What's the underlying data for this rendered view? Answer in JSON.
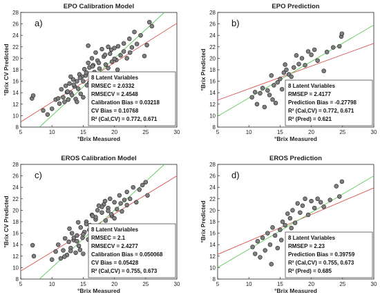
{
  "colors": {
    "point_fill": "#808080",
    "point_stroke": "#2b2b2b",
    "fit_line": "#d9534f",
    "ideal_line": "#5cc85c",
    "axis": "#222222",
    "background": "#ffffff"
  },
  "chart_data": [
    {
      "type": "scatter",
      "panel_letter": "a)",
      "title": "EPO Calibration Model",
      "xlabel": "°Brix Measured",
      "ylabel": "°Brix CV Predicted",
      "xlim": [
        5,
        30
      ],
      "ylim": [
        8,
        28
      ],
      "xticks": [
        "5",
        "10",
        "15",
        "20",
        "25",
        "30"
      ],
      "yticks": [
        "8",
        "10",
        "12",
        "14",
        "16",
        "18",
        "20",
        "22",
        "24",
        "26",
        "28"
      ],
      "grid": false,
      "lines": [
        {
          "kind": "fit",
          "color": "red",
          "points": [
            [
              5,
              8.9
            ],
            [
              30,
              26.1
            ]
          ]
        },
        {
          "kind": "ideal",
          "color": "green",
          "points": [
            [
              8,
              8
            ],
            [
              28,
              28
            ]
          ]
        }
      ],
      "stats": [
        "8 Latent Variables",
        "RMSEC = 2.0332",
        "RMSECV = 2.4548",
        "Calibration Bias = 0.03218",
        "CV Bias = 0.10768",
        "R² (Cal,CV) = 0.772, 0.671"
      ],
      "x": [
        6.8,
        7.0,
        8.6,
        9.3,
        10.0,
        10.6,
        11.0,
        11.2,
        11.5,
        11.8,
        12.0,
        12.2,
        12.4,
        12.6,
        12.8,
        13.0,
        13.2,
        13.4,
        13.6,
        13.8,
        14.0,
        14.2,
        14.4,
        14.6,
        14.8,
        15.0,
        15.2,
        15.4,
        15.6,
        15.8,
        16.0,
        16.2,
        16.4,
        16.6,
        16.8,
        17.0,
        17.3,
        17.6,
        18.0,
        18.3,
        18.6,
        19.0,
        19.3,
        19.6,
        20.0,
        20.3,
        20.6,
        21.0,
        21.5,
        22.0,
        22.4,
        22.8,
        23.2,
        23.6,
        24.2,
        24.8,
        25.2,
        25.6,
        26.0,
        12.5,
        13.5,
        14.5,
        15.5,
        16.5,
        17.5,
        18.5,
        19.5,
        20.5,
        21.5,
        22.5,
        14.0,
        15.0,
        16.0,
        17.0,
        18.0,
        19.0,
        20.0,
        13.0,
        15.8,
        18.2
      ],
      "y": [
        13.0,
        13.5,
        10.9,
        10.2,
        11.2,
        12.8,
        13.0,
        12.1,
        14.6,
        13.2,
        12.4,
        15.2,
        14.1,
        12.8,
        15.6,
        14.0,
        13.6,
        16.3,
        15.1,
        12.9,
        16.0,
        14.7,
        17.2,
        13.8,
        16.8,
        16.0,
        18.1,
        17.0,
        15.3,
        19.2,
        18.4,
        16.9,
        20.0,
        18.8,
        17.6,
        21.0,
        19.6,
        18.2,
        21.6,
        20.3,
        18.9,
        22.0,
        20.8,
        19.4,
        21.8,
        19.7,
        22.1,
        20.5,
        21.2,
        20.0,
        23.4,
        21.9,
        24.6,
        22.5,
        24.0,
        20.4,
        22.3,
        26.3,
        25.6,
        14.2,
        15.4,
        16.6,
        17.5,
        18.6,
        19.2,
        20.6,
        21.5,
        18.0,
        22.6,
        21.0,
        12.4,
        13.2,
        15.8,
        16.5,
        17.1,
        18.3,
        19.9,
        16.8,
        22.2,
        15.2
      ]
    },
    {
      "type": "scatter",
      "panel_letter": "b)",
      "title": "EPO Prediction",
      "xlabel": "°Brix Measured",
      "ylabel": "°Brix Predicted",
      "xlim": [
        5,
        30
      ],
      "ylim": [
        8,
        28
      ],
      "xticks": [
        "5",
        "10",
        "15",
        "20",
        "25",
        "30"
      ],
      "yticks": [
        "8",
        "10",
        "12",
        "14",
        "16",
        "18",
        "20",
        "22",
        "24",
        "26",
        "28"
      ],
      "grid": false,
      "lines": [
        {
          "kind": "fit",
          "color": "red",
          "points": [
            [
              5,
              12.7
            ],
            [
              30,
              22.6
            ]
          ]
        },
        {
          "kind": "ideal",
          "color": "green",
          "points": [
            [
              5,
              9.9
            ],
            [
              30,
              25.8
            ]
          ]
        }
      ],
      "stats": [
        "8 Latent Variables",
        "RMSEP = 2.4177",
        "Prediction Bias = -0.27798",
        "R² (Cal,CV) = 0.772, 0.671",
        "R² (Pred) = 0.621"
      ],
      "x": [
        10.5,
        11.0,
        11.3,
        11.8,
        12.2,
        12.5,
        13.0,
        13.3,
        13.6,
        14.0,
        14.3,
        14.6,
        15.0,
        15.3,
        15.6,
        16.0,
        16.4,
        16.8,
        17.2,
        17.6,
        18.0,
        18.5,
        19.0,
        19.5,
        20.0,
        20.5,
        21.0,
        22.0,
        22.5,
        23.5,
        24.5,
        24.8,
        24.9,
        13.8,
        15.8
      ],
      "y": [
        13.2,
        14.1,
        12.0,
        13.9,
        14.8,
        11.5,
        14.4,
        13.6,
        17.0,
        15.3,
        12.2,
        15.8,
        16.4,
        14.6,
        17.5,
        18.0,
        17.2,
        16.8,
        18.4,
        20.5,
        19.0,
        20.0,
        18.8,
        21.2,
        20.6,
        21.5,
        19.6,
        17.8,
        21.1,
        21.9,
        22.1,
        23.8,
        24.3,
        12.8,
        18.9
      ]
    },
    {
      "type": "scatter",
      "panel_letter": "c)",
      "title": "EROS Calibration Model",
      "xlabel": "°Brix Measured",
      "ylabel": "°Brix CV Predicted",
      "xlim": [
        5,
        30
      ],
      "ylim": [
        8,
        28
      ],
      "xticks": [
        "5",
        "10",
        "15",
        "20",
        "25",
        "30"
      ],
      "yticks": [
        "8",
        "10",
        "12",
        "14",
        "16",
        "18",
        "20",
        "22",
        "24",
        "26",
        "28"
      ],
      "grid": false,
      "lines": [
        {
          "kind": "fit",
          "color": "red",
          "points": [
            [
              5,
              9.4
            ],
            [
              30,
              26.0
            ]
          ]
        },
        {
          "kind": "ideal",
          "color": "green",
          "points": [
            [
              8,
              8
            ],
            [
              28,
              28
            ]
          ]
        }
      ],
      "stats": [
        "8 Latent Variables",
        "RMSEC = 2.1",
        "RMSECV = 2.4277",
        "Calibration Bias = 0.050068",
        "CV Bias = 0.05428",
        "R² (Cal,CV) = 0.755, 0.673"
      ],
      "x": [
        6.9,
        7.1,
        10.0,
        10.6,
        11.0,
        11.4,
        11.8,
        12.1,
        12.4,
        12.7,
        13.0,
        13.2,
        13.5,
        13.8,
        14.0,
        14.3,
        14.6,
        14.9,
        15.2,
        15.5,
        15.8,
        16.1,
        16.4,
        16.7,
        17.0,
        17.3,
        17.6,
        18.0,
        18.3,
        18.6,
        19.0,
        19.3,
        19.6,
        20.0,
        20.4,
        20.8,
        21.2,
        21.6,
        22.0,
        22.5,
        23.0,
        23.5,
        24.0,
        24.5,
        25.0,
        25.3,
        12.0,
        13.0,
        14.0,
        15.0,
        16.0,
        17.0,
        18.0,
        19.0,
        20.0,
        21.0,
        22.0,
        13.5,
        14.5,
        15.5,
        16.5,
        17.5,
        18.5,
        19.5,
        15.0,
        17.2,
        12.8,
        14.2
      ],
      "y": [
        13.9,
        12.0,
        11.4,
        12.8,
        14.0,
        11.6,
        13.0,
        15.1,
        12.2,
        14.5,
        13.4,
        16.0,
        14.8,
        12.6,
        15.6,
        13.8,
        17.0,
        15.2,
        16.2,
        18.0,
        14.9,
        17.4,
        19.2,
        16.6,
        18.4,
        20.0,
        17.2,
        19.6,
        21.0,
        18.2,
        20.4,
        22.0,
        19.0,
        21.4,
        20.2,
        22.6,
        19.8,
        21.8,
        23.2,
        22.0,
        24.0,
        21.4,
        23.6,
        24.4,
        24.9,
        22.6,
        11.9,
        12.9,
        14.6,
        15.8,
        16.6,
        18.8,
        20.6,
        19.9,
        18.6,
        21.2,
        20.9,
        15.2,
        13.1,
        17.6,
        19.0,
        20.8,
        21.6,
        19.3,
        12.4,
        15.6,
        16.8,
        17.9
      ]
    },
    {
      "type": "scatter",
      "panel_letter": "d)",
      "title": "EROS Prediction",
      "xlabel": "°Brix Measured",
      "ylabel": "°Brix Predicted",
      "xlim": [
        5,
        30
      ],
      "ylim": [
        8,
        28
      ],
      "xticks": [
        "5",
        "10",
        "15",
        "20",
        "25",
        "30"
      ],
      "yticks": [
        "8",
        "10",
        "12",
        "14",
        "16",
        "18",
        "20",
        "22",
        "24",
        "26",
        "28"
      ],
      "grid": false,
      "lines": [
        {
          "kind": "fit",
          "color": "red",
          "points": [
            [
              5,
              12.3
            ],
            [
              30,
              23.9
            ]
          ]
        },
        {
          "kind": "ideal",
          "color": "green",
          "points": [
            [
              5,
              10.0
            ],
            [
              30,
              26.0
            ]
          ]
        }
      ],
      "stats": [
        "8 Latent Variables",
        "RMSEP = 2.23",
        "Prediction Bias = 0.39759",
        "R² (Cal,CV) = 0.755, 0.673",
        "R² (Pred) = 0.685"
      ],
      "x": [
        10.6,
        11.0,
        11.4,
        11.8,
        12.2,
        12.6,
        13.0,
        13.4,
        13.8,
        14.2,
        14.6,
        15.0,
        15.4,
        15.8,
        16.2,
        16.6,
        17.0,
        17.4,
        17.8,
        18.2,
        18.6,
        19.0,
        19.5,
        20.0,
        20.5,
        21.0,
        21.5,
        22.0,
        23.0,
        24.0,
        24.5,
        24.9,
        13.6,
        15.2,
        16.8
      ],
      "y": [
        13.6,
        12.4,
        14.6,
        11.8,
        15.2,
        13.0,
        16.0,
        14.0,
        17.0,
        15.6,
        13.4,
        16.6,
        18.0,
        17.4,
        19.4,
        18.6,
        20.0,
        17.8,
        21.2,
        19.6,
        20.8,
        22.0,
        19.2,
        21.6,
        20.4,
        22.0,
        21.4,
        20.6,
        21.8,
        24.2,
        22.4,
        25.0,
        10.6,
        14.8,
        16.9
      ]
    }
  ]
}
